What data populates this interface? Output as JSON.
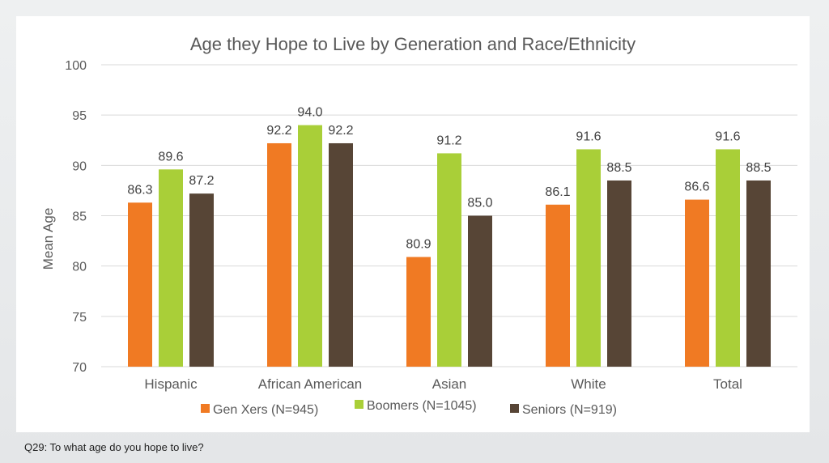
{
  "footnote": "Q29: To what age do you hope to live?",
  "colors": {
    "gen_x": "#f07a23",
    "boomers": "#a9cf38",
    "seniors": "#574536",
    "grid": "#d9d9d9",
    "text": "#595959"
  },
  "chart_data": {
    "type": "bar",
    "title": "Age they Hope to Live by Generation and Race/Ethnicity",
    "xlabel": "",
    "ylabel": "Mean Age",
    "ylim": [
      70,
      100
    ],
    "yticks": [
      "70",
      "75",
      "80",
      "85",
      "90",
      "95",
      "100"
    ],
    "grid": true,
    "legend_position": "bottom",
    "categories": [
      "Hispanic",
      "African American",
      "Asian",
      "White",
      "Total"
    ],
    "series": [
      {
        "name": "Gen Xers (N=945)",
        "color_key": "gen_x",
        "values": [
          86.3,
          92.2,
          80.9,
          86.1,
          86.6
        ],
        "labels": [
          "86.3",
          "92.2",
          "80.9",
          "86.1",
          "86.6"
        ]
      },
      {
        "name": "Boomers (N=1045)",
        "color_key": "boomers",
        "values": [
          89.6,
          94.0,
          91.2,
          91.6,
          91.6
        ],
        "labels": [
          "89.6",
          "94.0",
          "91.2",
          "91.6",
          "91.6"
        ]
      },
      {
        "name": "Seniors (N=919)",
        "color_key": "seniors",
        "values": [
          87.2,
          92.2,
          85.0,
          88.5,
          88.5
        ],
        "labels": [
          "87.2",
          "92.2",
          "85.0",
          "88.5",
          "88.5"
        ]
      }
    ]
  }
}
